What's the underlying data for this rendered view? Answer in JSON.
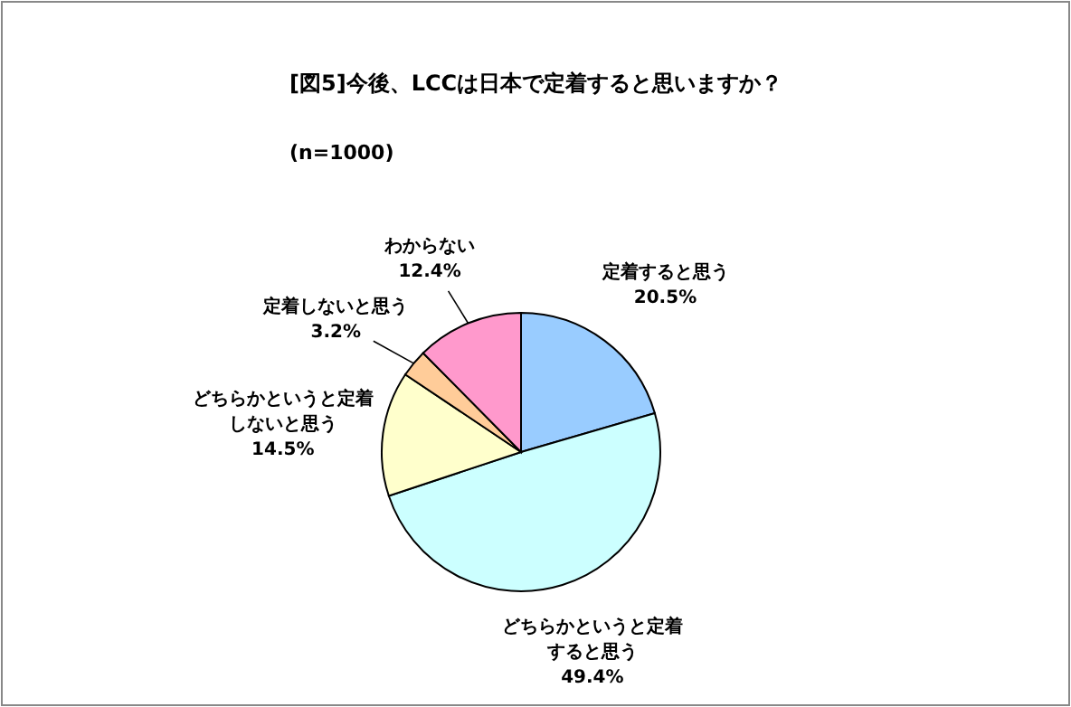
{
  "chart_data": {
    "type": "pie",
    "title": "[図5]今後、LCCは日本で定着すると思いますか？",
    "subtitle": "(n=1000)",
    "categories": [
      "定着すると思う",
      "どちらかというと定着すると思う",
      "どちらかというと定着しないと思う",
      "定着しないと思う",
      "わからない"
    ],
    "values": [
      20.5,
      49.4,
      14.5,
      3.2,
      12.4
    ],
    "value_labels": [
      "20.5%",
      "49.4%",
      "14.5%",
      "3.2%",
      "12.4%"
    ],
    "colors": [
      "#99ccff",
      "#ccffff",
      "#ffffcc",
      "#ffcc99",
      "#ff99cc"
    ]
  }
}
